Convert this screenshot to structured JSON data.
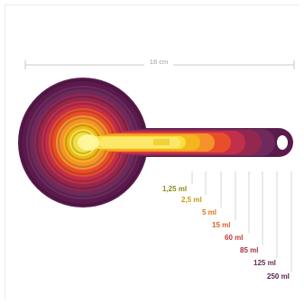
{
  "dimension": {
    "label": "18 cm"
  },
  "cups": [
    {
      "label": "250 ml",
      "color": "#5a1a4c"
    },
    {
      "label": "125 ml",
      "color": "#6e2a5c"
    },
    {
      "label": "85 ml",
      "color": "#93284f"
    },
    {
      "label": "60 ml",
      "color": "#c12f4a"
    },
    {
      "label": "15 ml",
      "color": "#e84e2c"
    },
    {
      "label": "5 ml",
      "color": "#f5922a"
    },
    {
      "label": "2,5 ml",
      "color": "#f6b51c"
    },
    {
      "label": "1,25 ml",
      "color": "#f4e040"
    }
  ],
  "label_colors": [
    "#8f8a1a",
    "#c59a12",
    "#d9781b",
    "#d95f2b",
    "#c6393d",
    "#a12f45",
    "#6b2b58",
    "#5a1f4e"
  ]
}
